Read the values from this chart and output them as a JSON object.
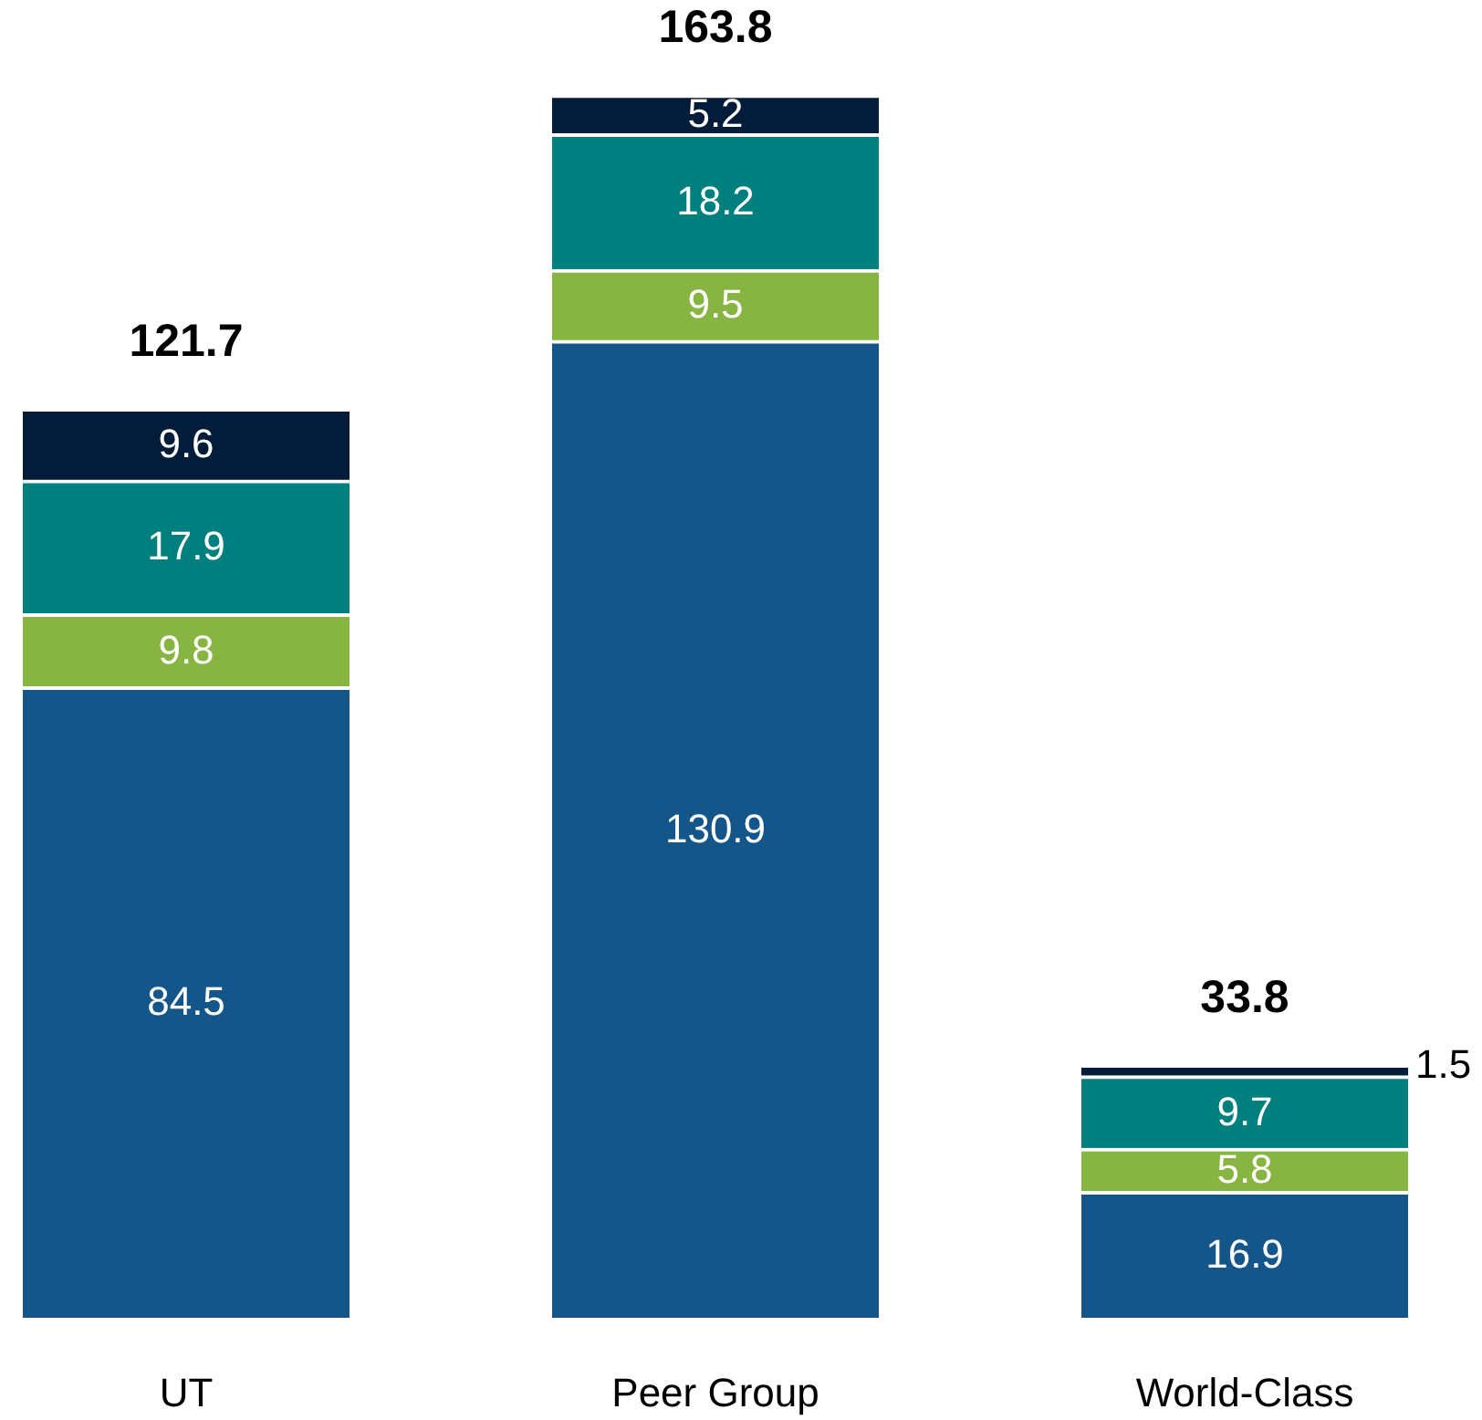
{
  "chart_data": {
    "type": "bar",
    "stacked": true,
    "categories": [
      "UT",
      "Peer Group",
      "World-Class"
    ],
    "series": [
      {
        "color": "#14568a",
        "values": [
          84.5,
          130.9,
          16.9
        ]
      },
      {
        "color": "#88b541",
        "values": [
          9.8,
          9.5,
          5.8
        ]
      },
      {
        "color": "#007f7f",
        "values": [
          17.9,
          18.2,
          9.7
        ]
      },
      {
        "color": "#031c3a",
        "values": [
          9.6,
          5.2,
          1.5
        ]
      }
    ],
    "data_labels": true,
    "totals": [
      "121.7",
      "163.8",
      "33.8"
    ],
    "grid": false,
    "legend": false
  }
}
